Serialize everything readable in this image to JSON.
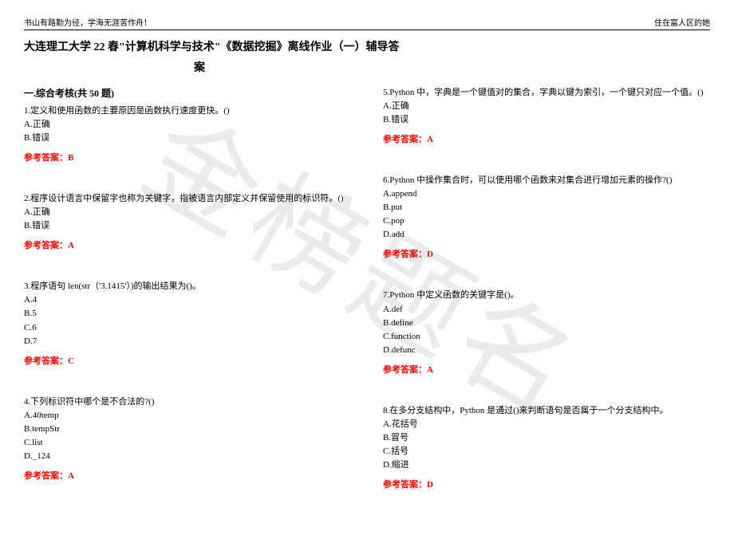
{
  "watermark": "金榜题名",
  "header_left": "书山有路勤为径，学海无涯苦作舟！",
  "header_right": "住在富人区的她",
  "title_line1": "大连理工大学 22 春\"计算机科学与技术\"《数据挖掘》离线作业（一）辅导答",
  "title_line2": "案",
  "section_heading": "一.综合考核(共 50 题)",
  "answer_prefix": "参考答案：",
  "left": [
    {
      "stem": "1.定义和使用函数的主要原因是函数执行速度更快。()",
      "options": [
        "A.正确",
        "B.错误"
      ],
      "answer": "B"
    },
    {
      "stem": "2.程序设计语言中保留字也称为关键字，指被语言内部定义并保留使用的标识符。()",
      "options": [
        "A.正确",
        "B.错误"
      ],
      "answer": "A"
    },
    {
      "stem": "3.程序语句 len(str（'3.1415'）)的输出结果为()。",
      "options": [
        "A.4",
        "B.5",
        "C.6",
        "D.7"
      ],
      "answer": "C"
    },
    {
      "stem": "4.下列标识符中哪个是不合法的?()",
      "options": [
        "A.40temp",
        "B.tempStr",
        "C.list",
        "D._124"
      ],
      "answer": "A"
    }
  ],
  "right": [
    {
      "stem": "5.Python 中，字典是一个键值对的集合，字典以键为索引，一个键只对应一个值。()",
      "options": [
        "A.正确",
        "B.错误"
      ],
      "answer": "A"
    },
    {
      "stem": "6.Python 中操作集合时，可以使用哪个函数来对集合进行增加元素的操作?()",
      "options": [
        "A.append",
        "B.put",
        "C.pop",
        "D.add"
      ],
      "answer": "D"
    },
    {
      "stem": "7.Python 中定义函数的关键字是()。",
      "options": [
        "A.def",
        "B.define",
        "C.function",
        "D.defunc"
      ],
      "answer": "A"
    },
    {
      "stem": "8.在多分支结构中，Python 是通过()来判断语句是否属于一个分支结构中。",
      "options": [
        "A.花括号",
        "B.冒号",
        "C.括号",
        "D.缩进"
      ],
      "answer": "D"
    }
  ],
  "colors": {
    "answer": "#ff0000",
    "text": "#000000",
    "bg": "#ffffff",
    "watermark": "rgba(0,0,0,0.08)"
  }
}
